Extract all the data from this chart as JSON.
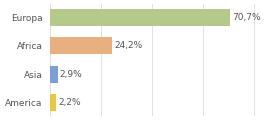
{
  "categories": [
    "America",
    "Asia",
    "Africa",
    "Europa"
  ],
  "values": [
    2.2,
    2.9,
    24.2,
    70.7
  ],
  "labels": [
    "2,2%",
    "2,9%",
    "24,2%",
    "70,7%"
  ],
  "bar_colors": [
    "#e8c840",
    "#7b9fd4",
    "#e8b080",
    "#b5c98a"
  ],
  "background_color": "#ffffff",
  "xlim": [
    0,
    88
  ],
  "bar_height": 0.6,
  "label_fontsize": 6.5,
  "ytick_fontsize": 6.5
}
